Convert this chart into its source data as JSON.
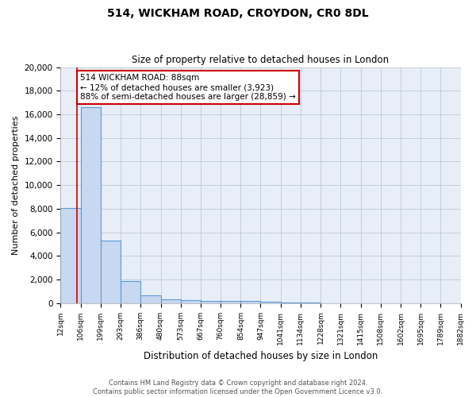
{
  "title": "514, WICKHAM ROAD, CROYDON, CR0 8DL",
  "subtitle": "Size of property relative to detached houses in London",
  "xlabel": "Distribution of detached houses by size in London",
  "ylabel": "Number of detached properties",
  "bin_edges": [
    12,
    106,
    199,
    293,
    386,
    480,
    573,
    667,
    760,
    854,
    947,
    1041,
    1134,
    1228,
    1321,
    1415,
    1508,
    1602,
    1695,
    1789,
    1882
  ],
  "bar_heights": [
    8050,
    16600,
    5300,
    1870,
    680,
    340,
    230,
    200,
    160,
    190,
    90,
    50,
    35,
    20,
    15,
    10,
    8,
    5,
    3,
    2
  ],
  "bar_color": "#c8d8f0",
  "bar_edge_color": "#5b9bd5",
  "bar_edge_width": 0.8,
  "grid_color": "#c0c8d8",
  "bg_color": "#e8eef8",
  "red_line_x": 88,
  "red_line_color": "#cc0000",
  "annotation_text": "514 WICKHAM ROAD: 88sqm\n← 12% of detached houses are smaller (3,923)\n88% of semi-detached houses are larger (28,859) →",
  "annotation_box_color": "#ffffff",
  "annotation_border_color": "#cc0000",
  "ylim": [
    0,
    20000
  ],
  "yticks": [
    0,
    2000,
    4000,
    6000,
    8000,
    10000,
    12000,
    14000,
    16000,
    18000,
    20000
  ],
  "footer_line1": "Contains HM Land Registry data © Crown copyright and database right 2024.",
  "footer_line2": "Contains public sector information licensed under the Open Government Licence v3.0.",
  "tick_labels": [
    "12sqm",
    "106sqm",
    "199sqm",
    "293sqm",
    "386sqm",
    "480sqm",
    "573sqm",
    "667sqm",
    "760sqm",
    "854sqm",
    "947sqm",
    "1041sqm",
    "1134sqm",
    "1228sqm",
    "1321sqm",
    "1415sqm",
    "1508sqm",
    "1602sqm",
    "1695sqm",
    "1789sqm",
    "1882sqm"
  ]
}
